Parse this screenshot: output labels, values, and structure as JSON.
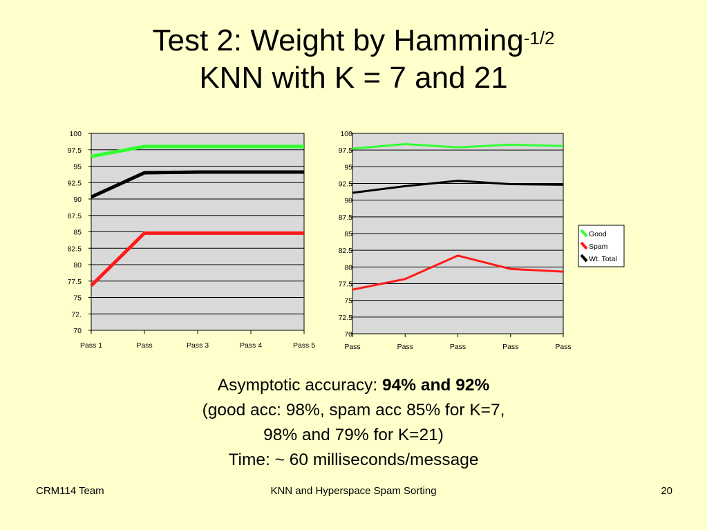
{
  "title": {
    "line1_prefix": "Test 2: Weight by Hamming",
    "line1_sup": "-1/2",
    "line2": "KNN with K = 7 and 21"
  },
  "colors": {
    "background": "#ffffcc",
    "plot_area": "#d9d9d9",
    "good": "#33ff33",
    "spam": "#ff1a1a",
    "total": "#000000"
  },
  "chart_data": [
    {
      "type": "line",
      "categories": [
        "Pass 1",
        "Pass",
        "Pass 3",
        "Pass 4",
        "Pass 5"
      ],
      "ylim": [
        70,
        100
      ],
      "yticks": [
        "70",
        "72.",
        "75",
        "77.5",
        "80",
        "82.5",
        "85",
        "87.5",
        "90",
        "92.5",
        "95",
        "97.5",
        "100"
      ],
      "grid": true,
      "series": [
        {
          "key": "good",
          "values": [
            96.5,
            98,
            98,
            98,
            98
          ]
        },
        {
          "key": "total",
          "values": [
            90.3,
            94,
            94.1,
            94.1,
            94.1
          ]
        },
        {
          "key": "spam",
          "values": [
            76.8,
            84.8,
            84.8,
            84.8,
            84.8
          ]
        }
      ]
    },
    {
      "type": "line",
      "categories": [
        "Pass",
        "Pass",
        "Pass",
        "Pass",
        "Pass"
      ],
      "ylim": [
        70,
        100
      ],
      "yticks": [
        "70",
        "72.5",
        "75",
        "77.5",
        "80",
        "82.5",
        "85",
        "87.5",
        "90",
        "92.5",
        "95",
        "97.5",
        "100"
      ],
      "grid": true,
      "legend": "right",
      "series": [
        {
          "name": "Good",
          "key": "good",
          "values": [
            97.7,
            98.4,
            97.9,
            98.3,
            98.1
          ]
        },
        {
          "name": "Spam",
          "key": "spam",
          "values": [
            76.6,
            78.2,
            81.7,
            79.7,
            79.3
          ]
        },
        {
          "name": "Wt. Total",
          "key": "total",
          "values": [
            91.1,
            92.1,
            92.9,
            92.4,
            92.3
          ]
        }
      ]
    }
  ],
  "body": {
    "line1_prefix": "Asymptotic accuracy: ",
    "line1_bold": "94% and 92%",
    "line2": "(good acc: 98%, spam acc 85%  for K=7,",
    "line3": "98% and 79% for K=21)",
    "line4": "Time: ~ 60 milliseconds/message"
  },
  "footer": {
    "left": "CRM114 Team",
    "center": "KNN and Hyperspace Spam Sorting",
    "page": "20"
  }
}
